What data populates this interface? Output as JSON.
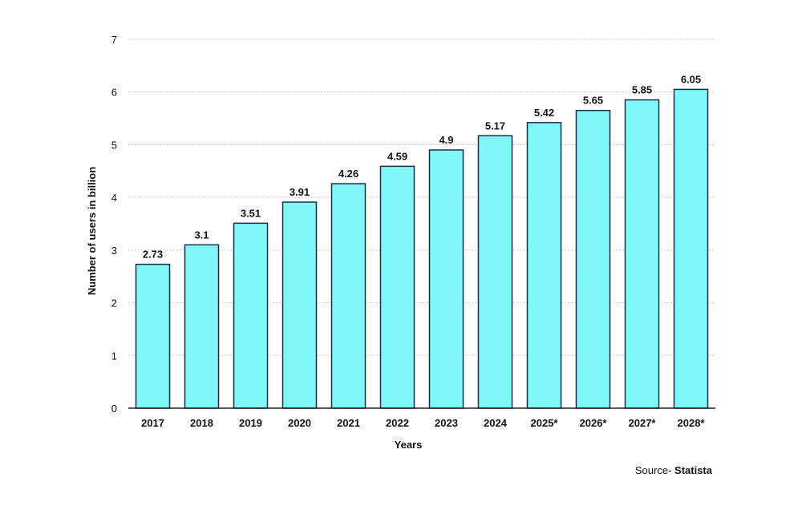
{
  "chart_data": {
    "type": "bar",
    "categories": [
      "2017",
      "2018",
      "2019",
      "2020",
      "2021",
      "2022",
      "2023",
      "2024",
      "2025*",
      "2026*",
      "2027*",
      "2028*"
    ],
    "values": [
      2.73,
      3.1,
      3.51,
      3.91,
      4.26,
      4.59,
      4.9,
      5.17,
      5.42,
      5.65,
      5.85,
      6.05
    ],
    "data_labels": [
      "2.73",
      "3.1",
      "3.51",
      "3.91",
      "4.26",
      "4.59",
      "4.9",
      "5.17",
      "5.42",
      "5.65",
      "5.85",
      "6.05"
    ],
    "title": "",
    "xlabel": "Years",
    "ylabel": "Number of users in billion",
    "ylim": [
      0,
      7
    ],
    "yticks": [
      "0",
      "1",
      "2",
      "3",
      "4",
      "5",
      "6",
      "7"
    ],
    "grid": true,
    "legend": "none"
  },
  "colors": {
    "bar_fill": "#80f7f9",
    "bar_stroke": "#1b2d44",
    "grid": "#c8c8c8",
    "axis": "#222222",
    "text": "#111111"
  },
  "source": {
    "prefix": "Source- ",
    "name": "Statista"
  }
}
